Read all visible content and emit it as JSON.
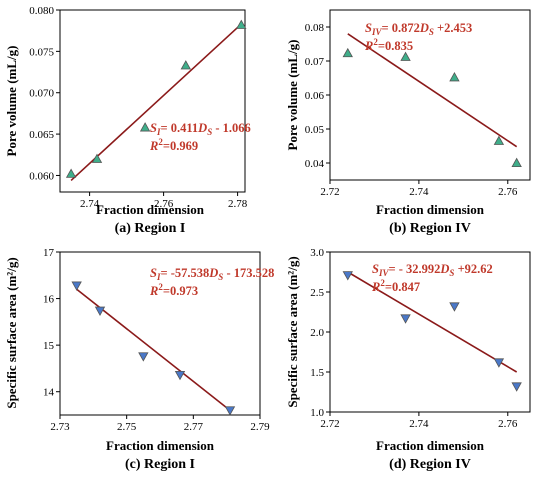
{
  "colors": {
    "fit_line": "#8b1a1a",
    "equation": "#c0392b",
    "marker_up_fill": "#3fae8a",
    "marker_up_stroke": "#555555",
    "marker_down_fill": "#4a78c8",
    "marker_down_stroke": "#555555"
  },
  "chart_data": [
    {
      "type": "scatter",
      "caption": "(a) Region I",
      "xlabel": "Fraction dimension",
      "ylabel": "Pore volume (mL/g)",
      "xlim": [
        2.732,
        2.782
      ],
      "ylim": [
        0.058,
        0.08
      ],
      "xticks": [
        {
          "v": 2.74,
          "label": "2.74"
        },
        {
          "v": 2.76,
          "label": "2.76"
        },
        {
          "v": 2.78,
          "label": "2.78"
        }
      ],
      "yticks": [
        {
          "v": 0.06,
          "label": "0.060"
        },
        {
          "v": 0.065,
          "label": "0.065"
        },
        {
          "v": 0.07,
          "label": "0.070"
        },
        {
          "v": 0.075,
          "label": "0.075"
        },
        {
          "v": 0.08,
          "label": "0.080"
        }
      ],
      "marker": "triangle-up",
      "x": [
        2.735,
        2.742,
        2.755,
        2.766,
        2.781
      ],
      "y": [
        0.0602,
        0.062,
        0.0658,
        0.0733,
        0.0782
      ],
      "fit": {
        "x": [
          2.735,
          2.781
        ],
        "y": [
          0.0594,
          0.0783
        ]
      },
      "equation": {
        "subject": "S",
        "sub": "I",
        "rest": "= 0.411",
        "var": "D",
        "var_sub": "S",
        "tail": " - 1.066",
        "r2_label": "R",
        "r2_value": "=0.969"
      }
    },
    {
      "type": "scatter",
      "caption": "(b) Region IV",
      "xlabel": "Fraction dimension",
      "ylabel": "Pore volume (mL/g)",
      "xlim": [
        2.72,
        2.765
      ],
      "ylim": [
        0.035,
        0.085
      ],
      "xticks": [
        {
          "v": 2.72,
          "label": "2.72"
        },
        {
          "v": 2.74,
          "label": "2.74"
        },
        {
          "v": 2.76,
          "label": "2.76"
        }
      ],
      "yticks": [
        {
          "v": 0.04,
          "label": "0.04"
        },
        {
          "v": 0.05,
          "label": "0.05"
        },
        {
          "v": 0.06,
          "label": "0.06"
        },
        {
          "v": 0.07,
          "label": "0.07"
        },
        {
          "v": 0.08,
          "label": "0.08"
        }
      ],
      "marker": "triangle-up",
      "x": [
        2.724,
        2.737,
        2.748,
        2.758,
        2.762
      ],
      "y": [
        0.0723,
        0.0712,
        0.0652,
        0.0465,
        0.04
      ],
      "fit": {
        "x": [
          2.724,
          2.762
        ],
        "y": [
          0.078,
          0.0448
        ]
      },
      "equation": {
        "subject": "S",
        "sub": "IV",
        "rest": "= 0.872",
        "var": "D",
        "var_sub": "S",
        "tail": " +2.453",
        "r2_label": "R",
        "r2_value": "=0.835"
      }
    },
    {
      "type": "scatter",
      "caption": "(c) Region I",
      "xlabel": "Fraction dimension",
      "ylabel": "Specific surface area (m²/g)",
      "xlim": [
        2.73,
        2.79
      ],
      "ylim": [
        13.5,
        17.0
      ],
      "xticks": [
        {
          "v": 2.73,
          "label": "2.73"
        },
        {
          "v": 2.75,
          "label": "2.75"
        },
        {
          "v": 2.77,
          "label": "2.77"
        },
        {
          "v": 2.79,
          "label": "2.79"
        }
      ],
      "yticks": [
        {
          "v": 14,
          "label": "14"
        },
        {
          "v": 15,
          "label": "15"
        },
        {
          "v": 16,
          "label": "16"
        },
        {
          "v": 17,
          "label": "17"
        }
      ],
      "marker": "triangle-down",
      "x": [
        2.735,
        2.742,
        2.755,
        2.766,
        2.781
      ],
      "y": [
        16.28,
        15.74,
        14.76,
        14.36,
        13.6
      ],
      "fit": {
        "x": [
          2.735,
          2.781
        ],
        "y": [
          16.2,
          13.6
        ]
      },
      "equation": {
        "subject": "S",
        "sub": "I",
        "rest": "= -57.538",
        "var": "D",
        "var_sub": "S",
        "tail": " - 173.528",
        "r2_label": "R",
        "r2_value": "=0.973"
      }
    },
    {
      "type": "scatter",
      "caption": "(d) Region IV",
      "xlabel": "Fraction dimension",
      "ylabel": "Specific surface area (m²/g)",
      "xlim": [
        2.72,
        2.765
      ],
      "ylim": [
        1.0,
        3.0
      ],
      "xticks": [
        {
          "v": 2.72,
          "label": "2.72"
        },
        {
          "v": 2.74,
          "label": "2.74"
        },
        {
          "v": 2.76,
          "label": "2.76"
        }
      ],
      "yticks": [
        {
          "v": 1.0,
          "label": "1.0"
        },
        {
          "v": 1.5,
          "label": "1.5"
        },
        {
          "v": 2.0,
          "label": "2.0"
        },
        {
          "v": 2.5,
          "label": "2.5"
        },
        {
          "v": 3.0,
          "label": "3.0"
        }
      ],
      "marker": "triangle-down",
      "x": [
        2.724,
        2.737,
        2.748,
        2.758,
        2.762
      ],
      "y": [
        2.71,
        2.17,
        2.32,
        1.62,
        1.32
      ],
      "fit": {
        "x": [
          2.724,
          2.762
        ],
        "y": [
          2.75,
          1.5
        ]
      },
      "equation": {
        "subject": "S",
        "sub": "IV",
        "rest": "= - 32.992",
        "var": "D",
        "var_sub": "S",
        "tail": " +92.62",
        "r2_label": "R",
        "r2_value": "=0.847"
      }
    }
  ]
}
